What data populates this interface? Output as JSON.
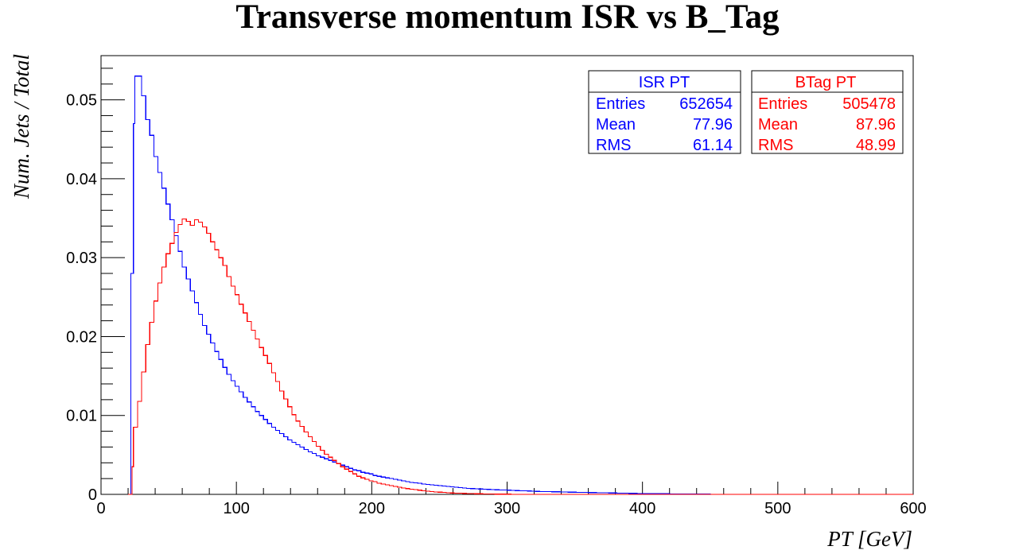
{
  "chart_data": {
    "type": "histogram",
    "title": "Transverse momentum ISR vs B_Tag",
    "xlabel": "PT [GeV]",
    "ylabel": "Num. Jets / Total",
    "xlim": [
      0,
      600
    ],
    "ylim": [
      0,
      0.0556
    ],
    "bin_width": 3,
    "x_ticks": [
      0,
      100,
      200,
      300,
      400,
      500,
      600
    ],
    "y_ticks": [
      0,
      0.01,
      0.02,
      0.03,
      0.04,
      0.05
    ],
    "x_tick_labels": [
      "0",
      "100",
      "200",
      "300",
      "400",
      "500",
      "600"
    ],
    "y_tick_labels": [
      "0",
      "0.01",
      "0.02",
      "0.03",
      "0.04",
      "0.05"
    ],
    "grid": false,
    "series": [
      {
        "name": "ISR PT",
        "color": "#0000ff",
        "stats": {
          "entries": "652654",
          "mean": "77.96",
          "rms": "61.14"
        },
        "points": [
          [
            20,
            0.0
          ],
          [
            21,
            0.0
          ],
          [
            22,
            0.028
          ],
          [
            24,
            0.047
          ],
          [
            25,
            0.053
          ],
          [
            27,
            0.053
          ],
          [
            30,
            0.0505
          ],
          [
            33,
            0.0475
          ],
          [
            36,
            0.0455
          ],
          [
            39,
            0.0428
          ],
          [
            42,
            0.0408
          ],
          [
            45,
            0.0388
          ],
          [
            48,
            0.0368
          ],
          [
            51,
            0.0348
          ],
          [
            54,
            0.0328
          ],
          [
            57,
            0.0308
          ],
          [
            60,
            0.0288
          ],
          [
            63,
            0.0273
          ],
          [
            66,
            0.0258
          ],
          [
            69,
            0.0243
          ],
          [
            72,
            0.0228
          ],
          [
            75,
            0.0214
          ],
          [
            78,
            0.0203
          ],
          [
            81,
            0.0192
          ],
          [
            84,
            0.0181
          ],
          [
            87,
            0.0171
          ],
          [
            90,
            0.0161
          ],
          [
            93,
            0.0152
          ],
          [
            96,
            0.0144
          ],
          [
            99,
            0.0137
          ],
          [
            102,
            0.013
          ],
          [
            105,
            0.0123
          ],
          [
            108,
            0.0117
          ],
          [
            111,
            0.0111
          ],
          [
            114,
            0.0105
          ],
          [
            117,
            0.01
          ],
          [
            120,
            0.0095
          ],
          [
            123,
            0.009
          ],
          [
            126,
            0.0085
          ],
          [
            129,
            0.0081
          ],
          [
            132,
            0.0077
          ],
          [
            135,
            0.0073
          ],
          [
            138,
            0.0069
          ],
          [
            141,
            0.0066
          ],
          [
            144,
            0.0063
          ],
          [
            147,
            0.006
          ],
          [
            150,
            0.0057
          ],
          [
            153,
            0.0054
          ],
          [
            156,
            0.0052
          ],
          [
            159,
            0.0049
          ],
          [
            162,
            0.0047
          ],
          [
            165,
            0.0045
          ],
          [
            168,
            0.0043
          ],
          [
            171,
            0.0041
          ],
          [
            174,
            0.0039
          ],
          [
            177,
            0.0037
          ],
          [
            180,
            0.0035
          ],
          [
            183,
            0.0033
          ],
          [
            186,
            0.0031
          ],
          [
            189,
            0.003
          ],
          [
            192,
            0.0028
          ],
          [
            195,
            0.0027
          ],
          [
            198,
            0.0026
          ],
          [
            201,
            0.0024
          ],
          [
            204,
            0.0023
          ],
          [
            207,
            0.0022
          ],
          [
            210,
            0.0021
          ],
          [
            213,
            0.002
          ],
          [
            216,
            0.0019
          ],
          [
            219,
            0.0018
          ],
          [
            222,
            0.0017
          ],
          [
            225,
            0.0016
          ],
          [
            228,
            0.0015
          ],
          [
            231,
            0.00145
          ],
          [
            234,
            0.0014
          ],
          [
            237,
            0.0013
          ],
          [
            240,
            0.00125
          ],
          [
            243,
            0.0012
          ],
          [
            246,
            0.00115
          ],
          [
            249,
            0.0011
          ],
          [
            252,
            0.00105
          ],
          [
            255,
            0.001
          ],
          [
            258,
            0.00095
          ],
          [
            261,
            0.0009
          ],
          [
            264,
            0.00085
          ],
          [
            267,
            0.0008
          ],
          [
            270,
            0.00077
          ],
          [
            273,
            0.00074
          ],
          [
            276,
            0.00071
          ],
          [
            279,
            0.00068
          ],
          [
            282,
            0.00065
          ],
          [
            285,
            0.00062
          ],
          [
            288,
            0.0006
          ],
          [
            291,
            0.00058
          ],
          [
            294,
            0.00056
          ],
          [
            297,
            0.00054
          ],
          [
            300,
            0.00052
          ],
          [
            303,
            0.0005
          ],
          [
            306,
            0.00048
          ],
          [
            309,
            0.00046
          ],
          [
            312,
            0.00044
          ],
          [
            315,
            0.00042
          ],
          [
            318,
            0.0004
          ],
          [
            321,
            0.00038
          ],
          [
            324,
            0.00036
          ],
          [
            327,
            0.00035
          ],
          [
            330,
            0.00034
          ],
          [
            333,
            0.00033
          ],
          [
            336,
            0.00032
          ],
          [
            339,
            0.0003
          ],
          [
            342,
            0.00029
          ],
          [
            345,
            0.00028
          ],
          [
            348,
            0.00027
          ],
          [
            351,
            0.00026
          ],
          [
            354,
            0.00025
          ],
          [
            357,
            0.00024
          ],
          [
            360,
            0.00023
          ],
          [
            363,
            0.00022
          ],
          [
            366,
            0.00021
          ],
          [
            369,
            0.0002
          ],
          [
            372,
            0.00019
          ],
          [
            375,
            0.00018
          ],
          [
            378,
            0.00017
          ],
          [
            381,
            0.00016
          ],
          [
            384,
            0.00015
          ],
          [
            387,
            0.00014
          ],
          [
            390,
            0.00013
          ],
          [
            393,
            0.00012
          ],
          [
            396,
            0.00011
          ],
          [
            399,
            0.0001
          ],
          [
            402,
            9.5e-05
          ],
          [
            405,
            9e-05
          ],
          [
            408,
            8.5e-05
          ],
          [
            411,
            8e-05
          ],
          [
            414,
            7.5e-05
          ],
          [
            417,
            7e-05
          ],
          [
            420,
            6.5e-05
          ],
          [
            423,
            6e-05
          ],
          [
            426,
            5.5e-05
          ],
          [
            429,
            5e-05
          ],
          [
            432,
            4.5e-05
          ],
          [
            435,
            4e-05
          ],
          [
            438,
            3.5e-05
          ],
          [
            441,
            3e-05
          ],
          [
            444,
            2.5e-05
          ],
          [
            447,
            2e-05
          ],
          [
            450,
            1.5e-05
          ],
          [
            453,
            1e-05
          ],
          [
            456,
            5e-06
          ],
          [
            459,
            2e-06
          ],
          [
            460,
            0.0
          ],
          [
            600,
            0.0
          ]
        ]
      },
      {
        "name": "BTag PT",
        "color": "#ff0000",
        "stats": {
          "entries": "505478",
          "mean": "87.96",
          "rms": "48.99"
        },
        "points": [
          [
            20,
            0.0
          ],
          [
            22,
            0.0
          ],
          [
            23,
            0.0035
          ],
          [
            24,
            0.0085
          ],
          [
            27,
            0.0118
          ],
          [
            30,
            0.0155
          ],
          [
            33,
            0.019
          ],
          [
            36,
            0.0218
          ],
          [
            39,
            0.0245
          ],
          [
            42,
            0.0268
          ],
          [
            45,
            0.0288
          ],
          [
            48,
            0.0305
          ],
          [
            51,
            0.0318
          ],
          [
            54,
            0.0332
          ],
          [
            57,
            0.0342
          ],
          [
            60,
            0.0349
          ],
          [
            63,
            0.0346
          ],
          [
            66,
            0.0341
          ],
          [
            69,
            0.0348
          ],
          [
            72,
            0.0345
          ],
          [
            75,
            0.0339
          ],
          [
            78,
            0.0331
          ],
          [
            81,
            0.032
          ],
          [
            84,
            0.031
          ],
          [
            87,
            0.03
          ],
          [
            90,
            0.029
          ],
          [
            93,
            0.0276
          ],
          [
            96,
            0.0264
          ],
          [
            99,
            0.0253
          ],
          [
            102,
            0.0241
          ],
          [
            105,
            0.023
          ],
          [
            108,
            0.0219
          ],
          [
            111,
            0.0208
          ],
          [
            114,
            0.0197
          ],
          [
            117,
            0.0186
          ],
          [
            120,
            0.0176
          ],
          [
            123,
            0.0166
          ],
          [
            126,
            0.0154
          ],
          [
            129,
            0.0143
          ],
          [
            132,
            0.0131
          ],
          [
            135,
            0.0121
          ],
          [
            138,
            0.0111
          ],
          [
            141,
            0.0101
          ],
          [
            144,
            0.0093
          ],
          [
            147,
            0.0086
          ],
          [
            150,
            0.0079
          ],
          [
            153,
            0.0073
          ],
          [
            156,
            0.0067
          ],
          [
            159,
            0.0061
          ],
          [
            162,
            0.0056
          ],
          [
            165,
            0.0051
          ],
          [
            168,
            0.0047
          ],
          [
            171,
            0.0043
          ],
          [
            174,
            0.0039
          ],
          [
            177,
            0.0035
          ],
          [
            180,
            0.0032
          ],
          [
            183,
            0.0029
          ],
          [
            186,
            0.0026
          ],
          [
            189,
            0.0023
          ],
          [
            192,
            0.0021
          ],
          [
            195,
            0.0019
          ],
          [
            198,
            0.0017
          ],
          [
            201,
            0.0016
          ],
          [
            204,
            0.0014
          ],
          [
            207,
            0.0013
          ],
          [
            210,
            0.0012
          ],
          [
            213,
            0.0011
          ],
          [
            216,
            0.001
          ],
          [
            219,
            0.0009
          ],
          [
            222,
            0.00082
          ],
          [
            225,
            0.00074
          ],
          [
            228,
            0.00066
          ],
          [
            231,
            0.00059
          ],
          [
            234,
            0.00052
          ],
          [
            237,
            0.00046
          ],
          [
            240,
            0.0004
          ],
          [
            243,
            0.00035
          ],
          [
            246,
            0.00031
          ],
          [
            249,
            0.00027
          ],
          [
            252,
            0.00024
          ],
          [
            255,
            0.00021
          ],
          [
            258,
            0.00018
          ],
          [
            261,
            0.00016
          ],
          [
            264,
            0.00014
          ],
          [
            267,
            0.00012
          ],
          [
            270,
            0.0001
          ],
          [
            273,
            9e-05
          ],
          [
            276,
            8e-05
          ],
          [
            279,
            7e-05
          ],
          [
            282,
            6e-05
          ],
          [
            285,
            5e-05
          ],
          [
            288,
            4e-05
          ],
          [
            291,
            3.5e-05
          ],
          [
            294,
            3e-05
          ],
          [
            297,
            2.5e-05
          ],
          [
            300,
            2e-05
          ],
          [
            303,
            1.5e-05
          ],
          [
            306,
            1e-05
          ],
          [
            309,
            5e-06
          ],
          [
            312,
            0.0
          ],
          [
            600,
            0.0
          ]
        ]
      }
    ]
  },
  "stats_labels": {
    "entries": "Entries",
    "mean": "Mean",
    "rms": "RMS"
  }
}
